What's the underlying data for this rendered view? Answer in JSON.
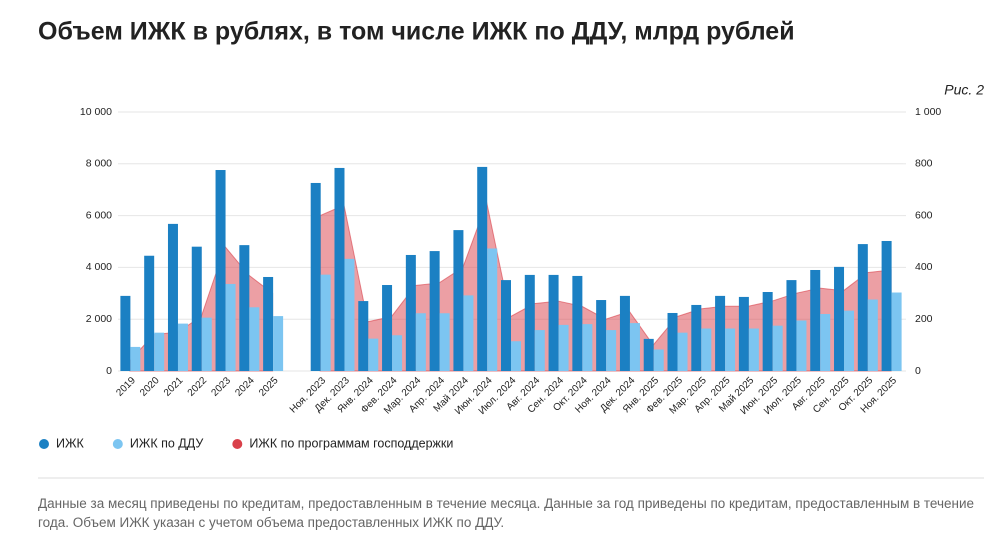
{
  "chart_data": {
    "type": "bar",
    "title": "Объем ИЖК в рублях, в том числе ИЖК по ДДУ, млрд рублей",
    "figure_label": "Рис. 2",
    "categories": [
      "2019",
      "2020",
      "2021",
      "2022",
      "2023",
      "2024",
      "2025",
      null,
      "Ноя. 2023",
      "Дек. 2023",
      "Янв. 2024",
      "Фев. 2024",
      "Мар. 2024",
      "Апр. 2024",
      "Май 2024",
      "Июн. 2024",
      "Июл. 2024",
      "Авг. 2024",
      "Сен. 2024",
      "Окт. 2024",
      "Ноя. 2024",
      "Дек. 2024",
      "Янв. 2025",
      "Фев. 2025",
      "Мар. 2025",
      "Апр. 2025",
      "Май 2025",
      "Июн. 2025",
      "Июл. 2025",
      "Авг. 2025",
      "Сен. 2025",
      "Окт. 2025",
      "Ноя. 2025"
    ],
    "series": [
      {
        "name": "ИЖК",
        "color": "#1b80c3",
        "values": [
          2900,
          4450,
          5680,
          4800,
          7760,
          4860,
          3630,
          null,
          7260,
          7840,
          2700,
          3320,
          4480,
          4630,
          5440,
          7880,
          3510,
          3710,
          3710,
          3670,
          2740,
          2900,
          1240,
          2240,
          2550,
          2900,
          2860,
          3050,
          3510,
          3900,
          4020,
          4900,
          5020
        ]
      },
      {
        "name": "ИЖК по ДДУ",
        "color": "#7cc5f1",
        "values": [
          930,
          1480,
          1830,
          2060,
          3360,
          2460,
          2120,
          null,
          3720,
          4330,
          1250,
          1380,
          2230,
          2230,
          2920,
          4730,
          1150,
          1580,
          1780,
          1810,
          1580,
          1850,
          830,
          1480,
          1640,
          1640,
          1640,
          1750,
          1950,
          2200,
          2330,
          2760,
          3030
        ]
      },
      {
        "name": "ИЖК по программам господдержки",
        "color": "#d9404a",
        "type": "area",
        "axis": "y2",
        "values": [
          40,
          140,
          150,
          210,
          480,
          370,
          300,
          null,
          600,
          640,
          190,
          210,
          330,
          340,
          400,
          650,
          210,
          260,
          270,
          250,
          200,
          230,
          100,
          210,
          240,
          250,
          250,
          270,
          300,
          320,
          310,
          380,
          390
        ]
      }
    ],
    "ylim": [
      0,
      10000
    ],
    "yticks": [
      0,
      {
        "value": 2000,
        "label": "2 000"
      },
      {
        "value": 4000,
        "label": "4 000"
      },
      {
        "value": 6000,
        "label": "6 000"
      },
      {
        "value": 8000,
        "label": "8 000"
      },
      {
        "value": 10000,
        "label": "10 000"
      }
    ],
    "y2lim": [
      0,
      1000
    ],
    "y2ticks": [
      0,
      200,
      400,
      600,
      800,
      {
        "value": 1000,
        "label": "1 000"
      }
    ],
    "grid": true,
    "legend": "bottom",
    "footnote": "Данные за месяц приведены по кредитам, предоставленным в течение месяца. Данные за год приведены по кредитам, предоставленным в течение года. Объем ИЖК указан с учетом объема предоставленных ИЖК по ДДУ."
  }
}
